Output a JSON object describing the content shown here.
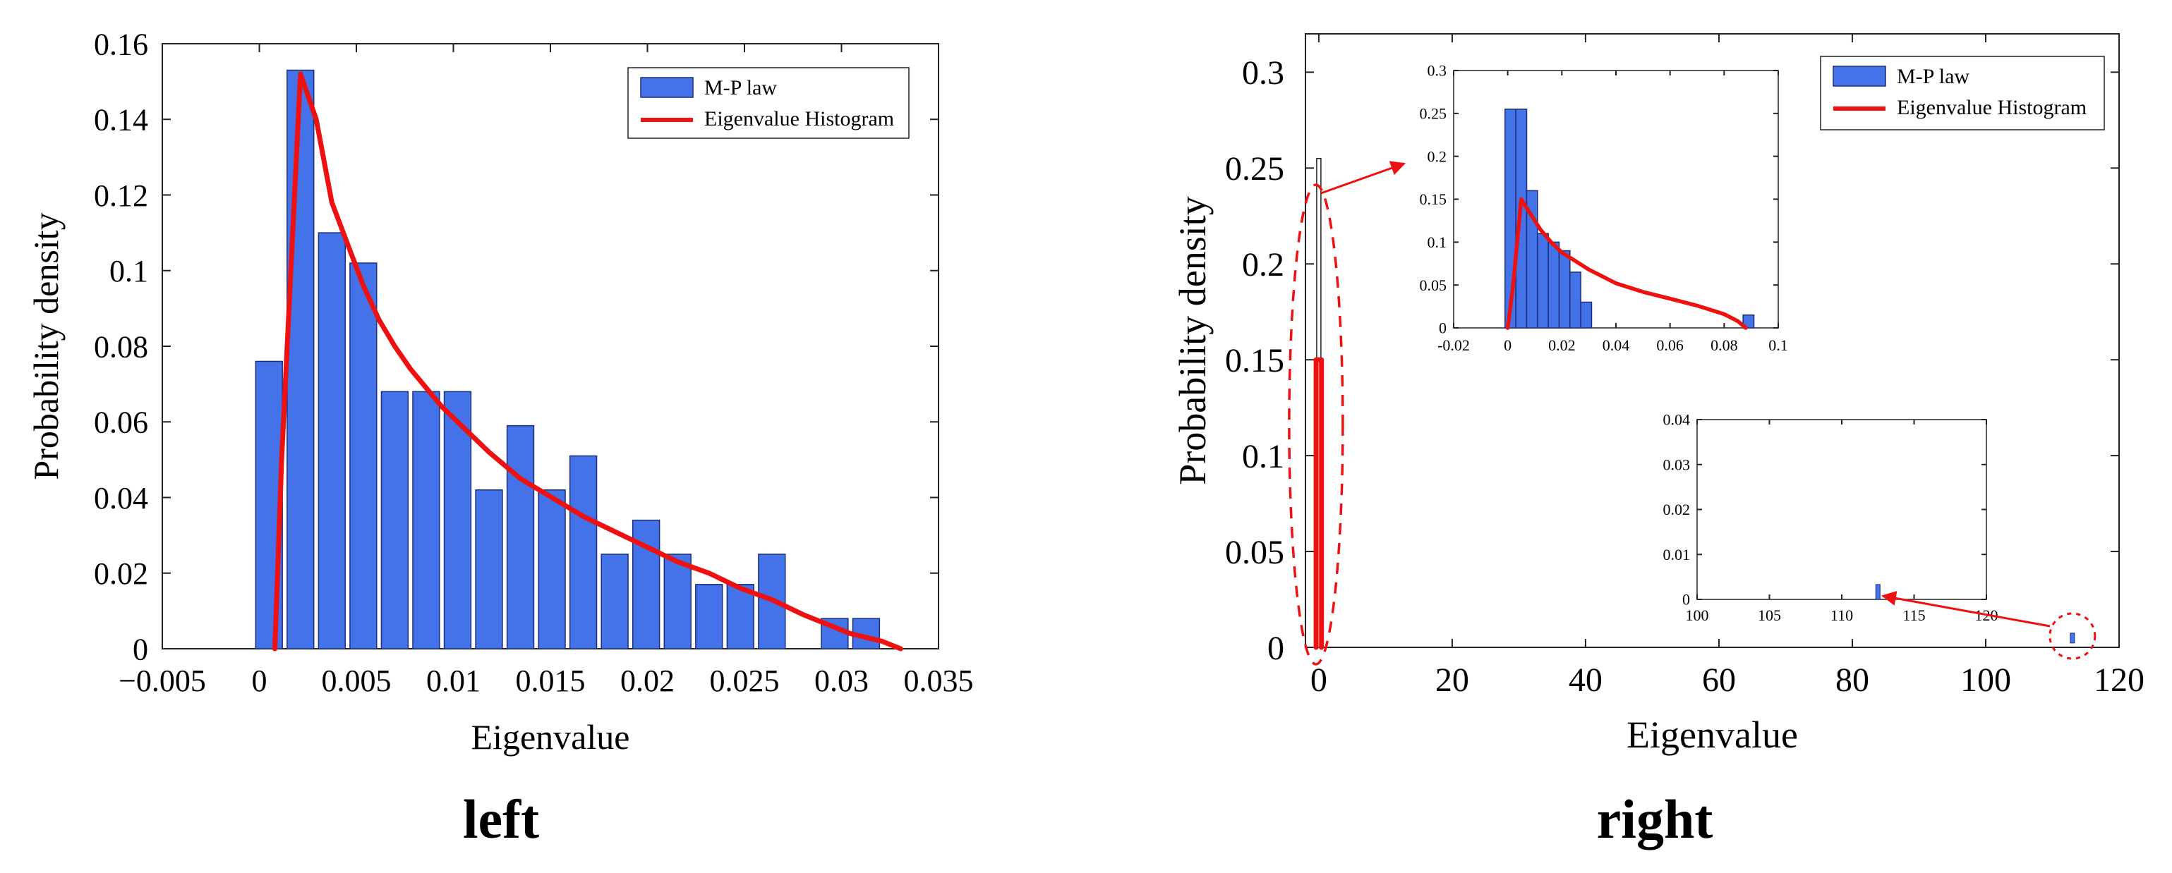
{
  "chart_data": [
    {
      "type": "bar",
      "panel_label": "left",
      "xlabel": "Eigenvalue",
      "ylabel": "Probability density",
      "xlim": [
        -0.005,
        0.035
      ],
      "ylim": [
        0,
        0.16
      ],
      "xticks": [
        -0.005,
        0,
        0.005,
        0.01,
        0.015,
        0.02,
        0.025,
        0.03,
        0.035
      ],
      "xtick_labels": [
        "−0.005",
        "0",
        "0.005",
        "0.01",
        "0.015",
        "0.02",
        "0.025",
        "0.03",
        "0.035"
      ],
      "yticks": [
        0,
        0.02,
        0.04,
        0.06,
        0.08,
        0.1,
        0.12,
        0.14,
        0.16
      ],
      "ytick_labels": [
        "0",
        "0.02",
        "0.04",
        "0.06",
        "0.08",
        "0.1",
        "0.12",
        "0.14",
        "0.16"
      ],
      "bar_width": 0.00085,
      "bars": {
        "name": "M-P law",
        "color": "#4472e8",
        "x": [
          0.0002,
          0.0012,
          0.0022,
          0.0032,
          0.0042,
          0.0052,
          0.0062,
          0.0072,
          0.0082,
          0.0092,
          0.0102,
          0.0112,
          0.0122,
          0.0132,
          0.0142,
          0.0152,
          0.0162,
          0.0172,
          0.0182,
          0.0192,
          0.0202
        ],
        "values": [
          0.076,
          0.153,
          0.11,
          0.102,
          0.068,
          0.068,
          0.068,
          0.042,
          0.059,
          0.042,
          0.051,
          0.025,
          0.034,
          0.025,
          0.017,
          0.017,
          0.025,
          0,
          0.008,
          0.008,
          0
        ]
      },
      "line": {
        "name": "Eigenvalue Histogram",
        "color": "#ee1111",
        "x": [
          0.0002,
          0.0006,
          0.0012,
          0.0017,
          0.0022,
          0.0027,
          0.0032,
          0.0037,
          0.0042,
          0.0047,
          0.0052,
          0.0057,
          0.0062,
          0.0067,
          0.0072,
          0.0082,
          0.0092,
          0.0102,
          0.0112,
          0.0122,
          0.0132,
          0.0142,
          0.0152,
          0.0162,
          0.0172,
          0.0187,
          0.0197,
          0.0203
        ],
        "values": [
          0,
          0.05,
          0.152,
          0.14,
          0.118,
          0.107,
          0.096,
          0.087,
          0.08,
          0.074,
          0.069,
          0.064,
          0.06,
          0.056,
          0.052,
          0.045,
          0.04,
          0.035,
          0.031,
          0.027,
          0.023,
          0.02,
          0.016,
          0.013,
          0.009,
          0.004,
          0.002,
          0
        ]
      },
      "legend": {
        "position": "top-right",
        "entries": [
          "M-P law",
          "Eigenvalue Histogram"
        ]
      }
    },
    {
      "type": "bar",
      "panel_label": "right",
      "xlabel": "Eigenvalue",
      "ylabel": "Probability density",
      "xlim": [
        -2,
        120
      ],
      "ylim": [
        0,
        0.32
      ],
      "xticks": [
        0,
        20,
        40,
        60,
        80,
        100,
        120
      ],
      "xtick_labels": [
        "0",
        "20",
        "40",
        "60",
        "80",
        "100",
        "120"
      ],
      "yticks": [
        0,
        0.05,
        0.1,
        0.15,
        0.2,
        0.25,
        0.3
      ],
      "ytick_labels": [
        "0",
        "0.05",
        "0.1",
        "0.15",
        "0.2",
        "0.25",
        "0.3"
      ],
      "bars": {
        "name": "M-P law",
        "color": "#4472e8",
        "x": [
          0,
          113
        ],
        "values": [
          0.255,
          0.003
        ]
      },
      "line": {
        "name": "Eigenvalue Histogram",
        "color": "#ee1111",
        "x": [
          -0.4,
          -0.4,
          0.4,
          0.4
        ],
        "values": [
          0,
          0.15,
          0.15,
          0
        ]
      },
      "legend": {
        "position": "top-right",
        "entries": [
          "M-P law",
          "Eigenvalue Histogram"
        ]
      },
      "insets": [
        {
          "name": "zoom-near-zero",
          "xlim": [
            -0.02,
            0.1
          ],
          "ylim": [
            0,
            0.3
          ],
          "xticks": [
            -0.02,
            0,
            0.02,
            0.04,
            0.06,
            0.08,
            0.1
          ],
          "xtick_labels": [
            "-0.02",
            "0",
            "0.02",
            "0.04",
            "0.06",
            "0.08",
            "0.1"
          ],
          "yticks": [
            0,
            0.05,
            0.1,
            0.15,
            0.2,
            0.25,
            0.3
          ],
          "ytick_labels": [
            "0",
            "0.05",
            "0.1",
            "0.15",
            "0.2",
            "0.25",
            "0.3"
          ],
          "bar_width": 0.004,
          "bars": {
            "x": [
              0.001,
              0.005,
              0.009,
              0.013,
              0.017,
              0.021,
              0.025,
              0.029,
              0.089
            ],
            "values": [
              0.255,
              0.255,
              0.16,
              0.11,
              0.1,
              0.09,
              0.065,
              0.03,
              0.015
            ]
          },
          "line": {
            "x": [
              0.0,
              0.002,
              0.005,
              0.008,
              0.012,
              0.016,
              0.02,
              0.03,
              0.04,
              0.05,
              0.06,
              0.07,
              0.08,
              0.085,
              0.088
            ],
            "values": [
              0,
              0.05,
              0.15,
              0.135,
              0.115,
              0.1,
              0.088,
              0.068,
              0.052,
              0.042,
              0.034,
              0.026,
              0.016,
              0.008,
              0
            ]
          }
        },
        {
          "name": "zoom-outlier",
          "xlim": [
            100,
            120
          ],
          "ylim": [
            0,
            0.04
          ],
          "xticks": [
            100,
            105,
            110,
            115,
            120
          ],
          "xtick_labels": [
            "100",
            "105",
            "110",
            "115",
            "120"
          ],
          "yticks": [
            0,
            0.01,
            0.02,
            0.03,
            0.04
          ],
          "ytick_labels": [
            "0",
            "0.01",
            "0.02",
            "0.03",
            "0.04"
          ],
          "bar_width": 0.25,
          "bars": {
            "x": [
              112.5
            ],
            "values": [
              0.003
            ]
          }
        }
      ]
    }
  ],
  "colors": {
    "bar": "#4472e8",
    "line": "#ee1111",
    "annotation": "#ee1111"
  }
}
